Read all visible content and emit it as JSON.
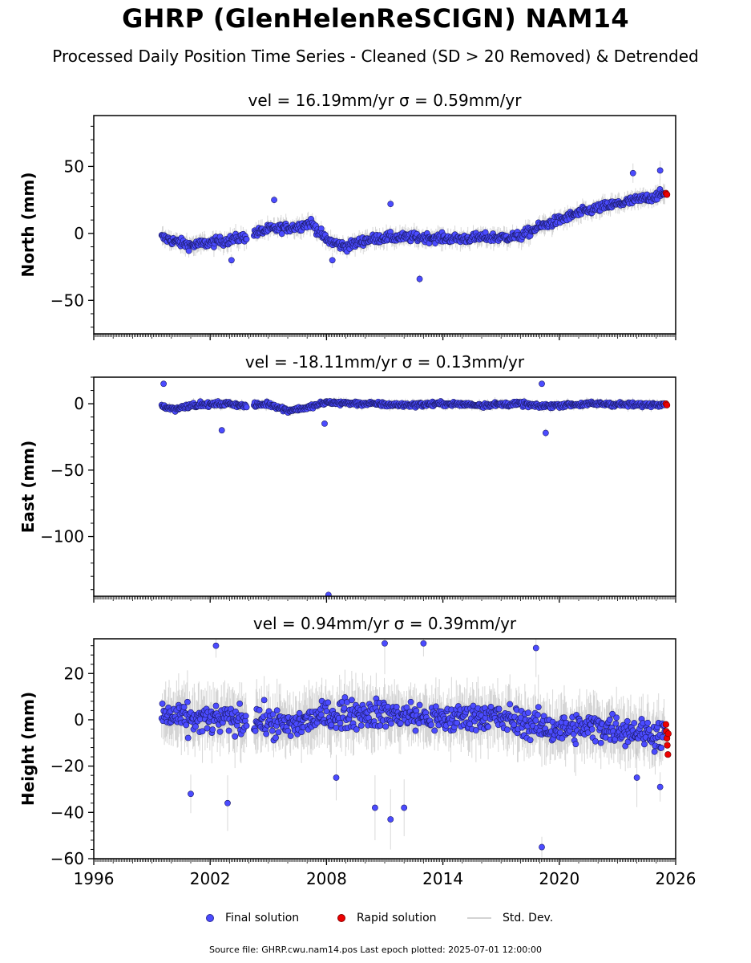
{
  "title": "GHRP (GlenHelenReSCIGN) NAM14",
  "subtitle": "Processed Daily Position Time Series - Cleaned (SD > 20 Removed) & Detrended",
  "legend": {
    "final": "Final solution",
    "rapid": "Rapid solution",
    "sd": "Std. Dev."
  },
  "footer": "Source file: GHRP.cwu.nam14.pos  Last epoch plotted: 2025-07-01 12:00:00",
  "colors": {
    "final": "#4b4bff",
    "final_edge": "#1a1a66",
    "rapid": "#ee0000",
    "sd": "#a9a9a9",
    "axis": "#000000"
  },
  "chart_data": [
    {
      "type": "scatter",
      "panel": "north",
      "title": "vel = 16.19mm/yr   σ = 0.59mm/yr",
      "ylabel": "North (mm)",
      "xlim": [
        1996,
        2026
      ],
      "ylim": [
        -75,
        88
      ],
      "yticks": [
        50,
        0,
        -50
      ],
      "ytick_labels": [
        "50",
        "0",
        "−50"
      ],
      "trend_points": [
        [
          1999.5,
          -3
        ],
        [
          2000.2,
          -6
        ],
        [
          2001,
          -9
        ],
        [
          2002,
          -7
        ],
        [
          2003,
          -5
        ],
        [
          2004,
          -2
        ],
        [
          2004.3,
          0
        ],
        [
          2005,
          3
        ],
        [
          2006.5,
          5
        ],
        [
          2007.2,
          8
        ],
        [
          2008,
          -5
        ],
        [
          2009,
          -10
        ],
        [
          2010,
          -5
        ],
        [
          2011,
          -3
        ],
        [
          2013,
          -3
        ],
        [
          2015,
          -4
        ],
        [
          2016,
          -3
        ],
        [
          2017,
          -3
        ],
        [
          2018,
          -2
        ],
        [
          2019,
          5
        ],
        [
          2020,
          10
        ],
        [
          2021,
          15
        ],
        [
          2022,
          19
        ],
        [
          2023,
          22
        ],
        [
          2024,
          25
        ],
        [
          2025,
          28
        ],
        [
          2025.5,
          30
        ]
      ],
      "jitter": 6,
      "outliers": [
        [
          2003.1,
          -20
        ],
        [
          2012.8,
          -34
        ],
        [
          2023.8,
          45
        ],
        [
          2025.2,
          47
        ],
        [
          2005.3,
          25
        ],
        [
          2008.3,
          -20
        ],
        [
          2011.3,
          22
        ]
      ],
      "rapid": [
        [
          2025.5,
          30
        ],
        [
          2025.55,
          29
        ]
      ]
    },
    {
      "type": "scatter",
      "panel": "east",
      "title": "vel = -18.11mm/yr   σ = 0.13mm/yr",
      "ylabel": "East (mm)",
      "xlim": [
        1996,
        2026
      ],
      "ylim": [
        -145,
        20
      ],
      "yticks": [
        0,
        -50,
        -100
      ],
      "ytick_labels": [
        "0",
        "−50",
        "−100"
      ],
      "trend_points": [
        [
          1999.5,
          -2
        ],
        [
          2000.2,
          -4
        ],
        [
          2001,
          -1
        ],
        [
          2003,
          0
        ],
        [
          2004,
          -2
        ],
        [
          2005,
          0
        ],
        [
          2006,
          -5
        ],
        [
          2007,
          -3
        ],
        [
          2008,
          1
        ],
        [
          2010,
          0
        ],
        [
          2012,
          -1
        ],
        [
          2014,
          0
        ],
        [
          2016,
          -1
        ],
        [
          2018,
          0
        ],
        [
          2019,
          -2
        ],
        [
          2020,
          -1
        ],
        [
          2022,
          0
        ],
        [
          2024,
          -1
        ],
        [
          2025.5,
          0
        ]
      ],
      "jitter": 3,
      "outliers": [
        [
          1999.6,
          15
        ],
        [
          2002.6,
          -20
        ],
        [
          2008.1,
          -144
        ],
        [
          2007.9,
          -15
        ],
        [
          2019.3,
          -22
        ],
        [
          2019.1,
          15
        ]
      ],
      "rapid": [
        [
          2025.5,
          0
        ],
        [
          2025.55,
          -1
        ]
      ]
    },
    {
      "type": "scatter",
      "panel": "height",
      "title": "vel = 0.94mm/yr   σ = 0.39mm/yr",
      "ylabel": "Height (mm)",
      "xlim": [
        1996,
        2026
      ],
      "ylim": [
        -60,
        35
      ],
      "yticks": [
        20,
        0,
        -20,
        -40,
        -60
      ],
      "ytick_labels": [
        "20",
        "0",
        "−20",
        "−40",
        "−60"
      ],
      "xticks": [
        1996,
        2002,
        2008,
        2014,
        2020,
        2026
      ],
      "xtick_labels": [
        "1996",
        "2002",
        "2008",
        "2014",
        "2020",
        "2026"
      ],
      "trend_points": [
        [
          1999.5,
          2
        ],
        [
          2001,
          0
        ],
        [
          2003,
          0
        ],
        [
          2004.5,
          0
        ],
        [
          2006,
          -3
        ],
        [
          2008,
          2
        ],
        [
          2010,
          3
        ],
        [
          2012,
          2
        ],
        [
          2014,
          0
        ],
        [
          2016,
          2
        ],
        [
          2018,
          -1
        ],
        [
          2019,
          -3
        ],
        [
          2020,
          -4
        ],
        [
          2022,
          -3
        ],
        [
          2024,
          -5
        ],
        [
          2025.5,
          -7
        ]
      ],
      "jitter": 11,
      "outliers": [
        [
          2002.3,
          32
        ],
        [
          2001,
          -32
        ],
        [
          2002.9,
          -36
        ],
        [
          2008.5,
          -25
        ],
        [
          2010.5,
          -38
        ],
        [
          2011.3,
          -43
        ],
        [
          2012,
          -38
        ],
        [
          2018.8,
          31
        ],
        [
          2019.1,
          -55
        ],
        [
          2013,
          33
        ],
        [
          2011,
          33
        ],
        [
          2024,
          -25
        ],
        [
          2025.2,
          -29
        ]
      ],
      "rapid": [
        [
          2025.5,
          -2
        ],
        [
          2025.52,
          -5
        ],
        [
          2025.55,
          -8
        ],
        [
          2025.57,
          -11
        ],
        [
          2025.6,
          -15
        ],
        [
          2025.62,
          -6
        ]
      ]
    }
  ]
}
